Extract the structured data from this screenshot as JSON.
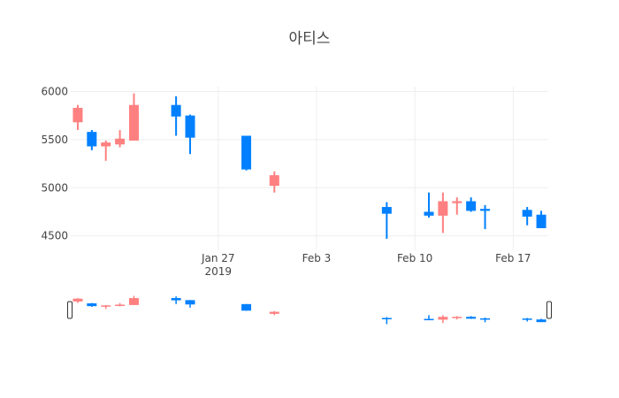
{
  "chart_data": {
    "type": "candlestick",
    "title": "아티스",
    "xlabel": "",
    "ylabel": "",
    "ylim": [
      4350,
      6050
    ],
    "xlim": [
      "2019-01-17",
      "2019-02-19"
    ],
    "y_ticks": [
      4500,
      5000,
      5500,
      6000
    ],
    "x_ticks": [
      {
        "date": "2019-01-27",
        "label": "Jan 27",
        "sublabel": "2019"
      },
      {
        "date": "2019-02-03",
        "label": "Feb 3",
        "sublabel": ""
      },
      {
        "date": "2019-02-10",
        "label": "Feb 10",
        "sublabel": ""
      },
      {
        "date": "2019-02-17",
        "label": "Feb 17",
        "sublabel": ""
      }
    ],
    "increasing_color": "#ff8080",
    "decreasing_color": "#0080ff",
    "grid": true,
    "rangeslider": true,
    "candles": [
      {
        "date": "2019-01-17",
        "open": 5680,
        "high": 5860,
        "low": 5600,
        "close": 5830
      },
      {
        "date": "2019-01-18",
        "open": 5580,
        "high": 5600,
        "low": 5390,
        "close": 5430
      },
      {
        "date": "2019-01-19",
        "open": 5430,
        "high": 5490,
        "low": 5280,
        "close": 5470
      },
      {
        "date": "2019-01-20",
        "open": 5450,
        "high": 5600,
        "low": 5420,
        "close": 5510
      },
      {
        "date": "2019-01-21",
        "open": 5490,
        "high": 5980,
        "low": 5490,
        "close": 5860
      },
      {
        "date": "2019-01-24",
        "open": 5860,
        "high": 5950,
        "low": 5540,
        "close": 5740
      },
      {
        "date": "2019-01-25",
        "open": 5750,
        "high": 5760,
        "low": 5350,
        "close": 5520
      },
      {
        "date": "2019-01-29",
        "open": 5540,
        "high": 5540,
        "low": 5180,
        "close": 5190
      },
      {
        "date": "2019-01-31",
        "open": 5020,
        "high": 5170,
        "low": 4950,
        "close": 5130
      },
      {
        "date": "2019-02-08",
        "open": 4800,
        "high": 4850,
        "low": 4470,
        "close": 4730
      },
      {
        "date": "2019-02-11",
        "open": 4750,
        "high": 4950,
        "low": 4690,
        "close": 4710
      },
      {
        "date": "2019-02-12",
        "open": 4710,
        "high": 4950,
        "low": 4530,
        "close": 4860
      },
      {
        "date": "2019-02-13",
        "open": 4840,
        "high": 4900,
        "low": 4720,
        "close": 4860
      },
      {
        "date": "2019-02-14",
        "open": 4860,
        "high": 4900,
        "low": 4750,
        "close": 4760
      },
      {
        "date": "2019-02-15",
        "open": 4780,
        "high": 4820,
        "low": 4570,
        "close": 4760
      },
      {
        "date": "2019-02-18",
        "open": 4770,
        "high": 4800,
        "low": 4610,
        "close": 4700
      },
      {
        "date": "2019-02-19",
        "open": 4720,
        "high": 4760,
        "low": 4580,
        "close": 4580
      }
    ]
  }
}
